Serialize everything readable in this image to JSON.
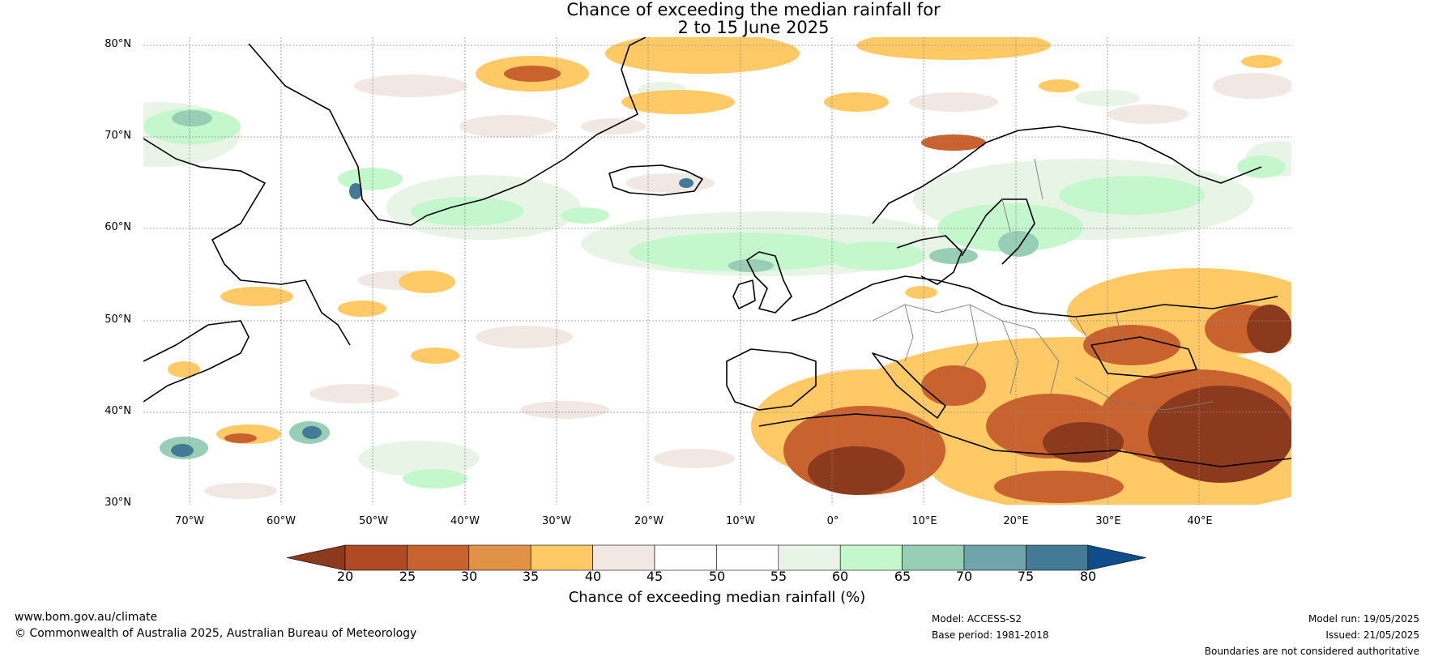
{
  "title": {
    "line1": "Chance of exceeding the median rainfall for",
    "line2": "2 to 15 June 2025"
  },
  "map": {
    "lat_labels": [
      "80°N",
      "70°N",
      "60°N",
      "50°N",
      "40°N",
      "30°N"
    ],
    "lon_labels": [
      "70°W",
      "60°W",
      "50°W",
      "40°W",
      "30°W",
      "20°W",
      "10°W",
      "0°",
      "10°E",
      "20°E",
      "30°E",
      "40°E"
    ],
    "lat_range": [
      30,
      81
    ],
    "lon_range": [
      -75,
      50
    ]
  },
  "colorbar": {
    "ticks": [
      "20",
      "25",
      "30",
      "35",
      "40",
      "45",
      "50",
      "55",
      "60",
      "65",
      "70",
      "75",
      "80"
    ],
    "colors": [
      "#8c3a1e",
      "#b04a25",
      "#c8622f",
      "#e09346",
      "#ffc966",
      "#f1e8e4",
      "#ffffff",
      "#ffffff",
      "#e8f5e6",
      "#c5f7cc",
      "#98cdb6",
      "#6fa4aa",
      "#437a96",
      "#0f4c8a"
    ],
    "label": "Chance of exceeding median rainfall (%)"
  },
  "footer": {
    "url": "www.bom.gov.au/climate",
    "copyright": "© Commonwealth of Australia 2025, Australian Bureau of Meteorology",
    "model": "Model: ACCESS-S2",
    "base_period": "Base period: 1981-2018",
    "model_run": "Model run: 19/05/2025",
    "issued": "Issued: 21/05/2025",
    "disclaimer": "Boundaries are not considered authoritative"
  }
}
